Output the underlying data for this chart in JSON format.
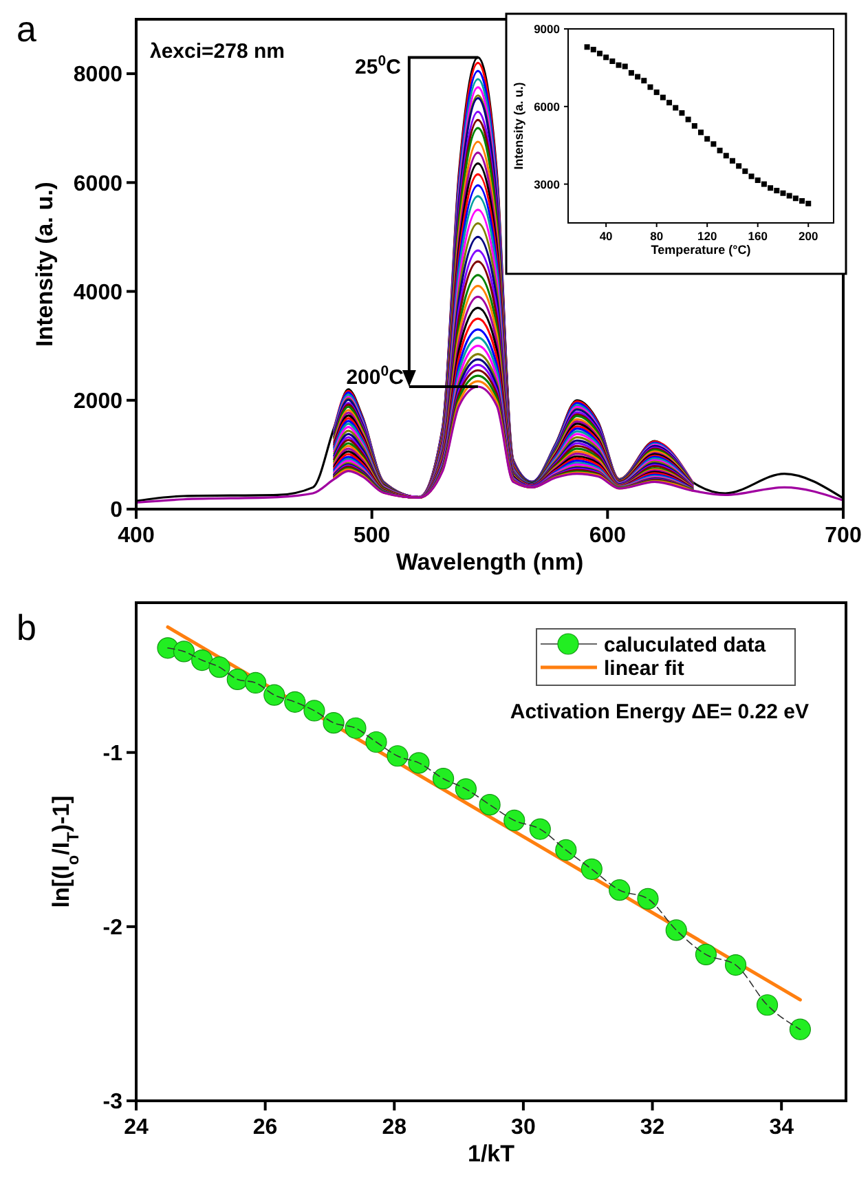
{
  "chart_data": [
    {
      "type": "line",
      "title": "a",
      "xlabel": "Wavelength (nm)",
      "ylabel": "Intensity (a. u.)",
      "xlim": [
        400,
        700
      ],
      "xticks": [
        400,
        500,
        600,
        700
      ],
      "ylim": [
        0,
        9000
      ],
      "yticks": [
        0,
        2000,
        4000,
        6000,
        8000
      ],
      "grid": false,
      "legend": false,
      "annotations": [
        "λexci=278 nm",
        "25$^{0}$C",
        "200$^{0}$C"
      ],
      "x": [
        400,
        420,
        460,
        475,
        484,
        490,
        496,
        505,
        520,
        530,
        537,
        545,
        553,
        560,
        568,
        578,
        587,
        596,
        605,
        620,
        636,
        650,
        675,
        700
      ],
      "series": [
        {
          "color": "#000000",
          "values": [
            150,
            240,
            260,
            400,
            1500,
            2200,
            1700,
            500,
            220,
            1500,
            6200,
            8300,
            6200,
            900,
            500,
            1200,
            2000,
            1600,
            550,
            1250,
            500,
            290,
            650,
            200
          ]
        },
        {
          "color": "#ff0000",
          "values": [
            null,
            null,
            null,
            null,
            1480,
            2170,
            1680,
            500,
            220,
            1490,
            6130,
            8200,
            6130,
            890,
            500,
            1190,
            1980,
            1580,
            550,
            1240,
            500,
            null,
            null,
            null
          ]
        },
        {
          "color": "#0000ff",
          "values": [
            null,
            null,
            null,
            null,
            1460,
            2140,
            1660,
            490,
            220,
            1470,
            6020,
            8050,
            6020,
            880,
            500,
            1180,
            1950,
            1560,
            540,
            1220,
            490,
            null,
            null,
            null
          ]
        },
        {
          "color": "#00a0a0",
          "values": [
            null,
            null,
            null,
            null,
            1440,
            2100,
            1630,
            490,
            220,
            1450,
            5920,
            7900,
            5920,
            870,
            490,
            1160,
            1910,
            1530,
            540,
            1200,
            490,
            null,
            null,
            null
          ]
        },
        {
          "color": "#ff00ff",
          "values": [
            null,
            null,
            null,
            null,
            1410,
            2060,
            1600,
            480,
            220,
            1430,
            5810,
            7750,
            5810,
            860,
            490,
            1140,
            1880,
            1510,
            530,
            1180,
            490,
            null,
            null,
            null
          ]
        },
        {
          "color": "#808000",
          "values": [
            null,
            null,
            null,
            null,
            1390,
            2030,
            1570,
            480,
            220,
            1410,
            5700,
            7600,
            5700,
            850,
            490,
            1130,
            1840,
            1480,
            530,
            1160,
            480,
            null,
            null,
            null
          ]
        },
        {
          "color": "#000080",
          "values": [
            null,
            null,
            null,
            null,
            1380,
            2010,
            1560,
            480,
            220,
            1400,
            5670,
            7550,
            5670,
            850,
            490,
            1120,
            1830,
            1480,
            530,
            1160,
            480,
            null,
            null,
            null
          ]
        },
        {
          "color": "#8000ff",
          "values": [
            null,
            null,
            null,
            null,
            1340,
            1950,
            1520,
            470,
            220,
            1370,
            5490,
            7300,
            5490,
            830,
            480,
            1100,
            1780,
            1440,
            520,
            1130,
            470,
            null,
            null,
            null
          ]
        },
        {
          "color": "#800000",
          "values": [
            null,
            null,
            null,
            null,
            1320,
            1920,
            1490,
            460,
            220,
            1350,
            5380,
            7150,
            5380,
            820,
            480,
            1080,
            1740,
            1410,
            520,
            1110,
            470,
            null,
            null,
            null
          ]
        },
        {
          "color": "#008000",
          "values": [
            null,
            null,
            null,
            null,
            1300,
            1880,
            1460,
            460,
            220,
            1330,
            5280,
            7000,
            5280,
            810,
            480,
            1070,
            1710,
            1390,
            510,
            1090,
            470,
            null,
            null,
            null
          ]
        },
        {
          "color": "#ff8000",
          "values": [
            null,
            null,
            null,
            null,
            1260,
            1820,
            1420,
            450,
            220,
            1300,
            5100,
            6750,
            5100,
            800,
            470,
            1040,
            1650,
            1340,
            510,
            1060,
            460,
            null,
            null,
            null
          ]
        },
        {
          "color": "#a000a0",
          "values": [
            null,
            null,
            null,
            null,
            1230,
            1770,
            1380,
            440,
            220,
            1270,
            4960,
            6550,
            4960,
            780,
            470,
            1020,
            1610,
            1310,
            500,
            1030,
            450,
            null,
            null,
            null
          ]
        },
        {
          "color": "#000000",
          "values": [
            null,
            null,
            null,
            null,
            1190,
            1720,
            1350,
            440,
            220,
            1240,
            4820,
            6350,
            4820,
            770,
            470,
            1000,
            1570,
            1280,
            500,
            1010,
            450,
            null,
            null,
            null
          ]
        },
        {
          "color": "#ff0000",
          "values": [
            null,
            null,
            null,
            null,
            1160,
            1670,
            1310,
            430,
            220,
            1220,
            4670,
            6150,
            4670,
            760,
            460,
            980,
            1520,
            1250,
            490,
            980,
            440,
            null,
            null,
            null
          ]
        },
        {
          "color": "#0000ff",
          "values": [
            null,
            null,
            null,
            null,
            1130,
            1620,
            1270,
            420,
            220,
            1190,
            4530,
            5950,
            4530,
            740,
            460,
            960,
            1480,
            1210,
            480,
            960,
            440,
            null,
            null,
            null
          ]
        },
        {
          "color": "#00a0a0",
          "values": [
            null,
            null,
            null,
            null,
            1100,
            1570,
            1240,
            420,
            220,
            1160,
            4390,
            5750,
            4390,
            730,
            460,
            940,
            1430,
            1180,
            480,
            930,
            430,
            null,
            null,
            null
          ]
        },
        {
          "color": "#ff00ff",
          "values": [
            null,
            null,
            null,
            null,
            1060,
            1510,
            1190,
            410,
            220,
            1130,
            4210,
            5500,
            4210,
            710,
            450,
            910,
            1380,
            1140,
            470,
            900,
            430,
            null,
            null,
            null
          ]
        },
        {
          "color": "#808000",
          "values": [
            null,
            null,
            null,
            null,
            1020,
            1440,
            1150,
            400,
            210,
            1100,
            4030,
            5250,
            4030,
            700,
            450,
            890,
            1320,
            1100,
            460,
            870,
            420,
            null,
            null,
            null
          ]
        },
        {
          "color": "#000080",
          "values": [
            null,
            null,
            null,
            null,
            980,
            1380,
            1100,
            390,
            210,
            1060,
            3860,
            5000,
            3860,
            680,
            450,
            860,
            1260,
            1060,
            460,
            840,
            410,
            null,
            null,
            null
          ]
        },
        {
          "color": "#8000ff",
          "values": [
            null,
            null,
            null,
            null,
            940,
            1320,
            1050,
            380,
            210,
            1030,
            3680,
            4750,
            3680,
            670,
            440,
            840,
            1210,
            1010,
            450,
            810,
            410,
            null,
            null,
            null
          ]
        },
        {
          "color": "#800000",
          "values": [
            null,
            null,
            null,
            null,
            910,
            1270,
            1020,
            380,
            210,
            1000,
            3530,
            4550,
            3530,
            650,
            440,
            820,
            1160,
            980,
            440,
            790,
            400,
            null,
            null,
            null
          ]
        },
        {
          "color": "#008000",
          "values": [
            null,
            null,
            null,
            null,
            870,
            1210,
            970,
            370,
            210,
            970,
            3360,
            4300,
            3360,
            640,
            430,
            790,
            1110,
            940,
            440,
            750,
            390,
            null,
            null,
            null
          ]
        },
        {
          "color": "#ff8000",
          "values": [
            null,
            null,
            null,
            null,
            840,
            1160,
            940,
            360,
            210,
            950,
            3220,
            4100,
            3220,
            620,
            430,
            770,
            1060,
            910,
            430,
            730,
            390,
            null,
            null,
            null
          ]
        },
        {
          "color": "#a000a0",
          "values": [
            null,
            null,
            null,
            null,
            810,
            1110,
            900,
            350,
            210,
            920,
            3070,
            3900,
            3070,
            610,
            430,
            750,
            1020,
            870,
            430,
            710,
            380,
            null,
            null,
            null
          ]
        },
        {
          "color": "#000000",
          "values": [
            null,
            null,
            null,
            null,
            780,
            1060,
            860,
            350,
            210,
            890,
            2930,
            3700,
            2930,
            600,
            420,
            730,
            970,
            840,
            420,
            680,
            380,
            null,
            null,
            null
          ]
        },
        {
          "color": "#ff0000",
          "values": [
            null,
            null,
            null,
            null,
            750,
            1010,
            830,
            340,
            210,
            870,
            2790,
            3500,
            2790,
            580,
            420,
            710,
            930,
            810,
            420,
            660,
            370,
            null,
            null,
            null
          ]
        },
        {
          "color": "#0000ff",
          "values": [
            null,
            null,
            null,
            null,
            720,
            960,
            790,
            330,
            210,
            840,
            2650,
            3300,
            2650,
            570,
            420,
            690,
            890,
            770,
            410,
            630,
            370,
            null,
            null,
            null
          ]
        },
        {
          "color": "#00a0a0",
          "values": [
            null,
            null,
            null,
            null,
            690,
            920,
            760,
            330,
            210,
            820,
            2540,
            3150,
            2540,
            560,
            410,
            670,
            850,
            750,
            410,
            610,
            360,
            null,
            null,
            null
          ]
        },
        {
          "color": "#ff00ff",
          "values": [
            null,
            null,
            null,
            null,
            670,
            890,
            740,
            320,
            210,
            800,
            2430,
            3000,
            2430,
            550,
            410,
            660,
            820,
            720,
            400,
            590,
            360,
            null,
            null,
            null
          ]
        },
        {
          "color": "#808000",
          "values": [
            null,
            null,
            null,
            null,
            640,
            850,
            710,
            320,
            210,
            780,
            2330,
            2850,
            2330,
            540,
            410,
            640,
            780,
            700,
            400,
            570,
            360,
            null,
            null,
            null
          ]
        },
        {
          "color": "#000080",
          "values": [
            null,
            null,
            null,
            null,
            630,
            820,
            690,
            320,
            210,
            770,
            2260,
            2750,
            2260,
            530,
            410,
            630,
            760,
            680,
            390,
            560,
            350,
            null,
            null,
            null
          ]
        },
        {
          "color": "#8000ff",
          "values": [
            null,
            null,
            null,
            null,
            610,
            800,
            670,
            310,
            210,
            750,
            2180,
            2650,
            2180,
            530,
            410,
            620,
            740,
            670,
            390,
            550,
            350,
            null,
            null,
            null
          ]
        },
        {
          "color": "#800000",
          "values": [
            null,
            null,
            null,
            null,
            600,
            780,
            660,
            310,
            210,
            740,
            2120,
            2550,
            2120,
            520,
            400,
            610,
            720,
            650,
            390,
            540,
            350,
            null,
            null,
            null
          ]
        },
        {
          "color": "#008000",
          "values": [
            null,
            null,
            null,
            null,
            580,
            750,
            640,
            310,
            210,
            730,
            2040,
            2450,
            2040,
            510,
            400,
            600,
            690,
            630,
            390,
            520,
            350,
            null,
            null,
            null
          ]
        },
        {
          "color": "#ff8000",
          "values": [
            null,
            null,
            null,
            null,
            570,
            730,
            620,
            300,
            210,
            710,
            1970,
            2350,
            1970,
            510,
            400,
            590,
            670,
            620,
            380,
            510,
            340,
            null,
            null,
            null
          ]
        },
        {
          "color": "#a000a0",
          "values": [
            120,
            180,
            220,
            290,
            550,
            700,
            600,
            300,
            210,
            700,
            1900,
            2250,
            1900,
            500,
            400,
            580,
            650,
            600,
            380,
            500,
            340,
            260,
            400,
            160
          ]
        }
      ]
    },
    {
      "type": "scatter",
      "xlabel": "Temperature (°C)",
      "ylabel": "Intensity (a. u.)",
      "xlim": [
        10,
        220
      ],
      "xticks": [
        40,
        80,
        120,
        160,
        200
      ],
      "ylim": [
        1500,
        9000
      ],
      "yticks": [
        3000,
        6000,
        9000
      ],
      "grid": false,
      "legend": false,
      "marker": "square",
      "x": [
        25,
        30,
        35,
        40,
        45,
        50,
        55,
        60,
        65,
        70,
        75,
        80,
        85,
        90,
        95,
        100,
        105,
        110,
        115,
        120,
        125,
        130,
        135,
        140,
        145,
        150,
        155,
        160,
        165,
        170,
        175,
        180,
        185,
        190,
        195,
        200
      ],
      "series": [
        {
          "color": "#000000",
          "values": [
            8300,
            8200,
            8050,
            7900,
            7750,
            7600,
            7550,
            7300,
            7150,
            7000,
            6750,
            6550,
            6350,
            6150,
            5950,
            5750,
            5500,
            5250,
            5000,
            4750,
            4550,
            4300,
            4100,
            3900,
            3700,
            3500,
            3300,
            3150,
            3000,
            2850,
            2750,
            2650,
            2550,
            2450,
            2350,
            2250
          ]
        }
      ]
    },
    {
      "type": "line",
      "title": "b",
      "xlabel": "1/kT",
      "ylabel": "ln[(I$_{o}$/I$_{T}$)-1]",
      "xlim": [
        24,
        35
      ],
      "xticks": [
        24,
        26,
        28,
        30,
        32,
        34
      ],
      "ylim": [
        -3,
        -0.14
      ],
      "yticks": [
        -1,
        -2,
        -3
      ],
      "grid": false,
      "legend": "top right",
      "annotations": [
        "Activation Energy ΔE= 0.22 eV"
      ],
      "series": [
        {
          "name": "caluculated data",
          "color": "#22ee22",
          "marker": "circle",
          "line_style": "dashed",
          "x": [
            24.49,
            24.74,
            25.02,
            25.29,
            25.57,
            25.85,
            26.14,
            26.46,
            26.76,
            27.06,
            27.4,
            27.72,
            28.05,
            28.38,
            28.76,
            29.11,
            29.48,
            29.86,
            30.26,
            30.66,
            31.06,
            31.49,
            31.93,
            32.37,
            32.83,
            33.29,
            33.78,
            34.29
          ],
          "values": [
            -0.4,
            -0.42,
            -0.47,
            -0.51,
            -0.58,
            -0.6,
            -0.67,
            -0.71,
            -0.76,
            -0.83,
            -0.86,
            -0.94,
            -1.02,
            -1.06,
            -1.15,
            -1.21,
            -1.3,
            -1.39,
            -1.44,
            -1.56,
            -1.67,
            -1.79,
            -1.84,
            -2.02,
            -2.16,
            -2.22,
            -2.45,
            -2.59
          ]
        },
        {
          "name": "linear fit",
          "color": "#ff7f10",
          "marker": "none",
          "line_style": "solid",
          "x": [
            24.49,
            34.29
          ],
          "values": [
            -0.28,
            -2.42
          ]
        }
      ]
    }
  ]
}
